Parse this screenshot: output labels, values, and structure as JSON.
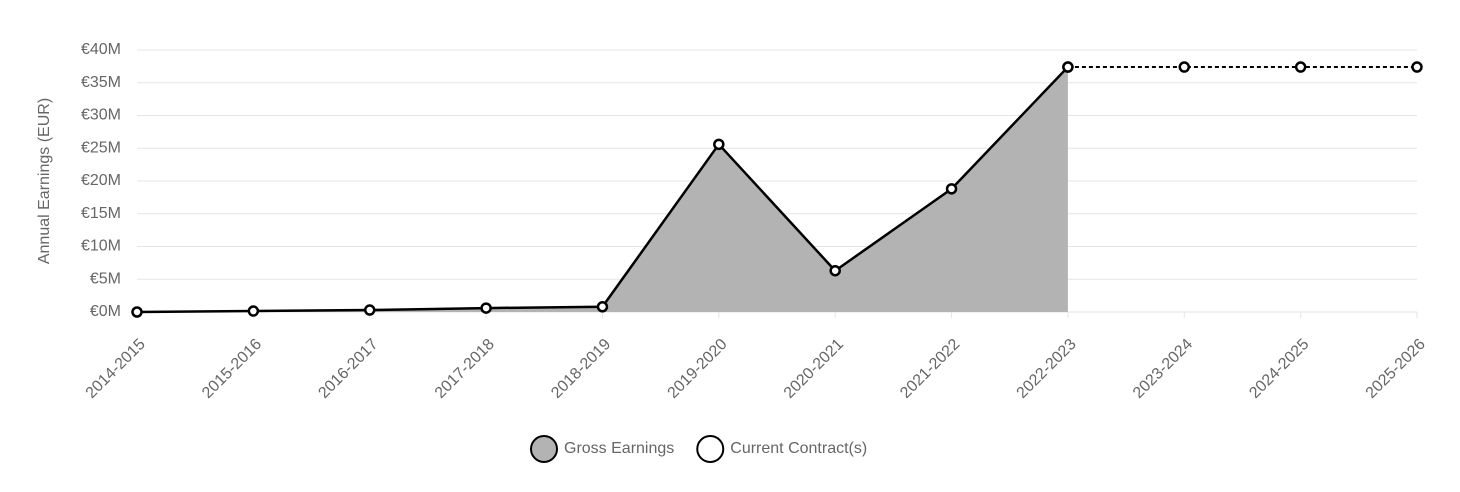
{
  "chart_data": {
    "type": "line",
    "y_axis_label": "Annual Earnings (EUR)",
    "categories": [
      "2014-2015",
      "2015-2016",
      "2016-2017",
      "2017-2018",
      "2018-2019",
      "2019-2020",
      "2020-2021",
      "2021-2022",
      "2022-2023",
      "2023-2024",
      "2024-2025",
      "2025-2026"
    ],
    "series": [
      {
        "name": "Gross Earnings",
        "color": "#b3b3b3",
        "line_color": "#000000",
        "fill": true,
        "dashed": false,
        "values": [
          0.0,
          0.15,
          0.3,
          0.6,
          0.8,
          25.6,
          6.3,
          18.8,
          37.4,
          null,
          null,
          null
        ]
      },
      {
        "name": "Current Contract(s)",
        "color": "#ffffff",
        "line_color": "#000000",
        "fill": false,
        "dashed": true,
        "values": [
          null,
          null,
          null,
          null,
          null,
          null,
          null,
          null,
          37.4,
          37.4,
          37.4,
          37.4
        ]
      }
    ],
    "ylim": [
      0,
      40
    ],
    "yticks": [
      {
        "value": 0,
        "label": "€0M"
      },
      {
        "value": 5,
        "label": "€5M"
      },
      {
        "value": 10,
        "label": "€10M"
      },
      {
        "value": 15,
        "label": "€15M"
      },
      {
        "value": 20,
        "label": "€20M"
      },
      {
        "value": 25,
        "label": "€25M"
      },
      {
        "value": 30,
        "label": "€30M"
      },
      {
        "value": 35,
        "label": "€35M"
      },
      {
        "value": 40,
        "label": "€40M"
      }
    ],
    "grid": true,
    "legend": "bottom"
  }
}
